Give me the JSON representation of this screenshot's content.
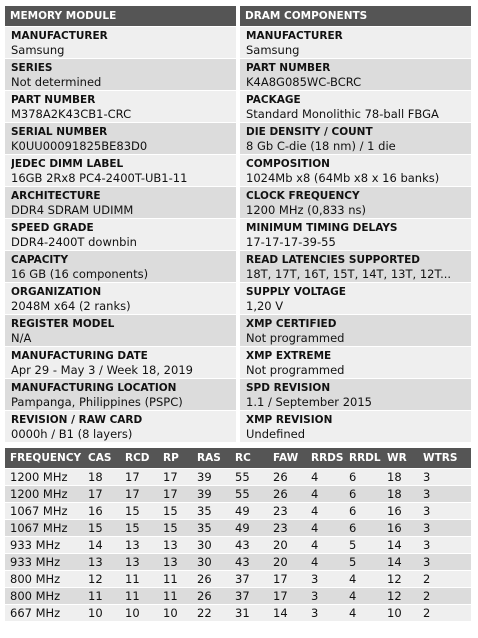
{
  "memory_module": {
    "header": "MEMORY MODULE",
    "fields": [
      {
        "label": "MANUFACTURER",
        "value": "Samsung"
      },
      {
        "label": "SERIES",
        "value": "Not determined"
      },
      {
        "label": "PART NUMBER",
        "value": "M378A2K43CB1-CRC"
      },
      {
        "label": "SERIAL NUMBER",
        "value": "K0UU00091825BE83D0"
      },
      {
        "label": "JEDEC DIMM LABEL",
        "value": "16GB 2Rx8 PC4-2400T-UB1-11"
      },
      {
        "label": "ARCHITECTURE",
        "value": "DDR4 SDRAM UDIMM"
      },
      {
        "label": "SPEED GRADE",
        "value": "DDR4-2400T downbin"
      },
      {
        "label": "CAPACITY",
        "value": "16 GB (16 components)"
      },
      {
        "label": "ORGANIZATION",
        "value": "2048M x64 (2 ranks)"
      },
      {
        "label": "REGISTER MODEL",
        "value": "N/A"
      },
      {
        "label": "MANUFACTURING DATE",
        "value": "Apr 29 - May 3 / Week 18, 2019"
      },
      {
        "label": "MANUFACTURING LOCATION",
        "value": "Pampanga, Philippines (PSPC)"
      },
      {
        "label": "REVISION / RAW CARD",
        "value": "0000h / B1 (8 layers)"
      }
    ]
  },
  "dram_components": {
    "header": "DRAM COMPONENTS",
    "fields": [
      {
        "label": "MANUFACTURER",
        "value": "Samsung"
      },
      {
        "label": "PART NUMBER",
        "value": "K4A8G085WC-BCRC"
      },
      {
        "label": "PACKAGE",
        "value": "Standard Monolithic 78-ball FBGA"
      },
      {
        "label": "DIE DENSITY / COUNT",
        "value": "8 Gb C-die (18 nm) / 1 die"
      },
      {
        "label": "COMPOSITION",
        "value": "1024Mb x8 (64Mb x8 x 16 banks)"
      },
      {
        "label": "CLOCK FREQUENCY",
        "value": "1200 MHz (0,833 ns)"
      },
      {
        "label": "MINIMUM TIMING DELAYS",
        "value": "17-17-17-39-55"
      },
      {
        "label": "READ LATENCIES SUPPORTED",
        "value": "18T, 17T, 16T, 15T, 14T, 13T, 12T..."
      },
      {
        "label": "SUPPLY VOLTAGE",
        "value": "1,20 V"
      },
      {
        "label": "XMP CERTIFIED",
        "value": "Not programmed"
      },
      {
        "label": "XMP EXTREME",
        "value": "Not programmed"
      },
      {
        "label": "SPD REVISION",
        "value": "1.1 / September 2015"
      },
      {
        "label": "XMP REVISION",
        "value": "Undefined"
      }
    ]
  },
  "timings": {
    "headers": [
      "FREQUENCY",
      "CAS",
      "RCD",
      "RP",
      "RAS",
      "RC",
      "FAW",
      "RRDS",
      "RRDL",
      "WR",
      "WTRS"
    ],
    "rows": [
      [
        "1200 MHz",
        "18",
        "17",
        "17",
        "39",
        "55",
        "26",
        "4",
        "6",
        "18",
        "3"
      ],
      [
        "1200 MHz",
        "17",
        "17",
        "17",
        "39",
        "55",
        "26",
        "4",
        "6",
        "18",
        "3"
      ],
      [
        "1067 MHz",
        "16",
        "15",
        "15",
        "35",
        "49",
        "23",
        "4",
        "6",
        "16",
        "3"
      ],
      [
        "1067 MHz",
        "15",
        "15",
        "15",
        "35",
        "49",
        "23",
        "4",
        "6",
        "16",
        "3"
      ],
      [
        "933 MHz",
        "14",
        "13",
        "13",
        "30",
        "43",
        "20",
        "4",
        "5",
        "14",
        "3"
      ],
      [
        "933 MHz",
        "13",
        "13",
        "13",
        "30",
        "43",
        "20",
        "4",
        "5",
        "14",
        "3"
      ],
      [
        "800 MHz",
        "12",
        "11",
        "11",
        "26",
        "37",
        "17",
        "3",
        "4",
        "12",
        "2"
      ],
      [
        "800 MHz",
        "11",
        "11",
        "11",
        "26",
        "37",
        "17",
        "3",
        "4",
        "12",
        "2"
      ],
      [
        "667 MHz",
        "10",
        "10",
        "10",
        "22",
        "31",
        "14",
        "3",
        "4",
        "10",
        "2"
      ]
    ]
  }
}
